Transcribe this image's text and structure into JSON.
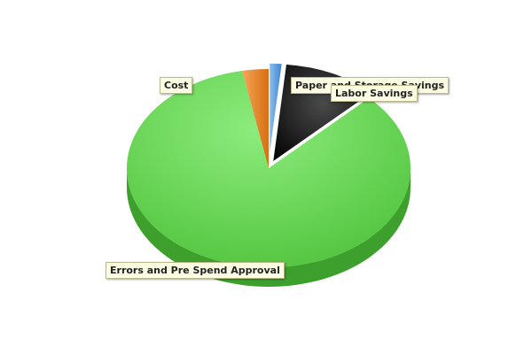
{
  "chart_data": {
    "type": "pie",
    "style": "3d",
    "title": "",
    "legend": "none",
    "slices": [
      {
        "label": "Paper and Storage Savings",
        "value": 1.5,
        "color": "#4a90d9",
        "exploded": true
      },
      {
        "label": "Labor Savings",
        "value": 11.0,
        "color": "#1a1a1a",
        "exploded": true
      },
      {
        "label": "Errors and Pre Spend Approval",
        "value": 84.5,
        "color": "#77dd66",
        "exploded": false
      },
      {
        "label": "Cost",
        "value": 3.0,
        "color": "#e8872a",
        "exploded": false
      }
    ]
  }
}
